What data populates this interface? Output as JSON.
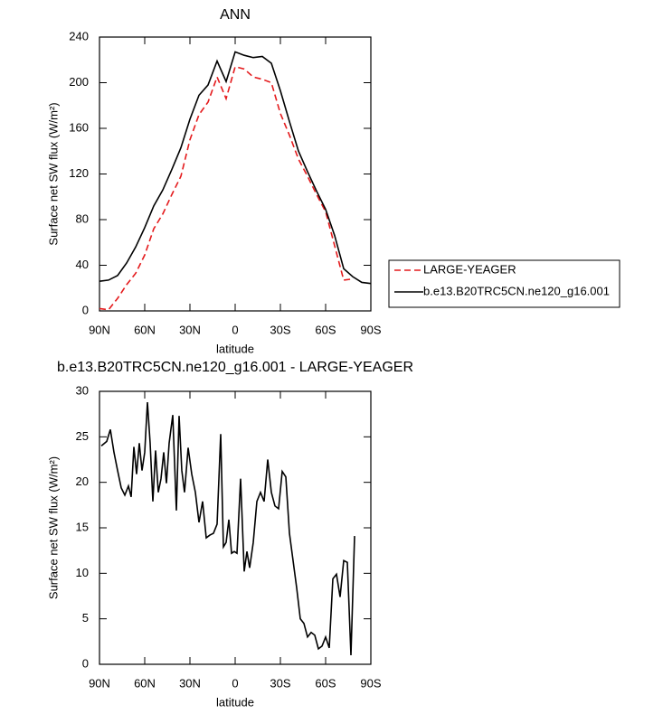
{
  "chart_data": [
    {
      "type": "line",
      "title": "ANN",
      "x_label": "latitude",
      "y_label": "Surface net SW flux (W/m²)",
      "xlim": [
        90,
        -90
      ],
      "ylim": [
        0,
        240
      ],
      "xticks": [
        {
          "value": 90,
          "label": "90N"
        },
        {
          "value": 60,
          "label": "60N"
        },
        {
          "value": 30,
          "label": "30N"
        },
        0,
        {
          "value": -30,
          "label": "30S"
        },
        {
          "value": -60,
          "label": "60S"
        },
        {
          "value": -90,
          "label": "90S"
        }
      ],
      "yticks": [
        0,
        40,
        80,
        120,
        160,
        200,
        240
      ],
      "legend": "outside-right",
      "x": [
        90,
        84,
        78,
        72,
        66,
        60,
        54,
        48,
        42,
        36,
        30,
        24,
        18,
        12,
        6,
        0,
        -6,
        -12,
        -18,
        -24,
        -30,
        -36,
        -42,
        -48,
        -54,
        -60,
        -66,
        -72,
        -78,
        -84,
        -90
      ],
      "series": [
        {
          "name": "LARGE-YEAGER",
          "color": "#e41a1c",
          "style": "dashed",
          "values": [
            2,
            1,
            11,
            23,
            33,
            49,
            72,
            85,
            102,
            118,
            150,
            172,
            183,
            205,
            186,
            214,
            212,
            205,
            203,
            200,
            173,
            154,
            133,
            118,
            102,
            87,
            57,
            27,
            28,
            null,
            null
          ]
        },
        {
          "name": "b.e13.B20TRC5CN.ne120_g16.001",
          "color": "#000000",
          "style": "solid",
          "values": [
            26,
            27,
            31,
            42,
            56,
            73,
            92,
            106,
            124,
            143,
            168,
            189,
            198,
            219,
            201,
            227,
            224,
            222,
            223,
            217,
            193,
            166,
            140,
            122,
            105,
            89,
            66,
            37,
            30,
            25,
            24
          ]
        }
      ]
    },
    {
      "type": "line",
      "title": "b.e13.B20TRC5CN.ne120_g16.001 - LARGE-YEAGER",
      "x_label": "latitude",
      "y_label": "Surface net SW flux (W/m²)",
      "xlim": [
        90,
        -90
      ],
      "ylim": [
        0,
        30
      ],
      "xticks": [
        {
          "value": 90,
          "label": "90N"
        },
        {
          "value": 60,
          "label": "60N"
        },
        {
          "value": 30,
          "label": "30N"
        },
        0,
        {
          "value": -30,
          "label": "30S"
        },
        {
          "value": -60,
          "label": "60S"
        },
        {
          "value": -90,
          "label": "90S"
        }
      ],
      "yticks": [
        0,
        5,
        10,
        15,
        20,
        25,
        30
      ],
      "x": [
        88.8,
        85.2,
        82.8,
        80.4,
        78,
        75.6,
        73.2,
        70.8,
        69,
        67.2,
        65.4,
        63.6,
        61.8,
        60,
        58.2,
        56.4,
        54.6,
        52.8,
        51,
        49.2,
        47.4,
        45.6,
        43.8,
        41.4,
        39,
        37.2,
        35.4,
        33.6,
        31.2,
        28.8,
        26.4,
        24,
        21.6,
        19.2,
        16.8,
        14.4,
        12,
        9.6,
        7.8,
        6,
        4.2,
        2.4,
        0.6,
        -1.2,
        -3.6,
        -6,
        -7.8,
        -9.6,
        -12,
        -14.4,
        -16.8,
        -19.2,
        -21.6,
        -24,
        -26.4,
        -28.8,
        -31.2,
        -33.6,
        -36,
        -38.4,
        -40.8,
        -43.2,
        -45.6,
        -48,
        -50.4,
        -52.8,
        -55.2,
        -57.6,
        -60,
        -62.4,
        -64.8,
        -67.2,
        -69.6,
        -72,
        -74.4,
        -76.8,
        -79.2
      ],
      "series": [
        {
          "color": "#000000",
          "style": "solid",
          "values": [
            24,
            24.5,
            25.8,
            23.3,
            21.3,
            19.4,
            18.6,
            19.6,
            18.4,
            23.9,
            20.9,
            24.3,
            21.3,
            23.3,
            28.8,
            24.3,
            17.9,
            23.5,
            18.9,
            20.4,
            23.3,
            19.9,
            24.3,
            27.4,
            16.9,
            27.3,
            21.3,
            18.9,
            23.8,
            20.9,
            18.9,
            15.6,
            17.9,
            13.9,
            14.2,
            14.4,
            15.4,
            25.3,
            12.9,
            13.4,
            15.9,
            12.2,
            12.4,
            12.2,
            20.4,
            10.2,
            12.4,
            10.6,
            13.4,
            17.9,
            18.9,
            17.9,
            22.5,
            18.9,
            17.4,
            17.1,
            21.2,
            20.6,
            14.4,
            11.4,
            8.4,
            5.0,
            4.5,
            3.0,
            3.5,
            3.2,
            1.7,
            2.0,
            3.0,
            1.8,
            9.4,
            9.9,
            7.4,
            11.4,
            11.2,
            1.0,
            14.1
          ]
        }
      ]
    }
  ]
}
